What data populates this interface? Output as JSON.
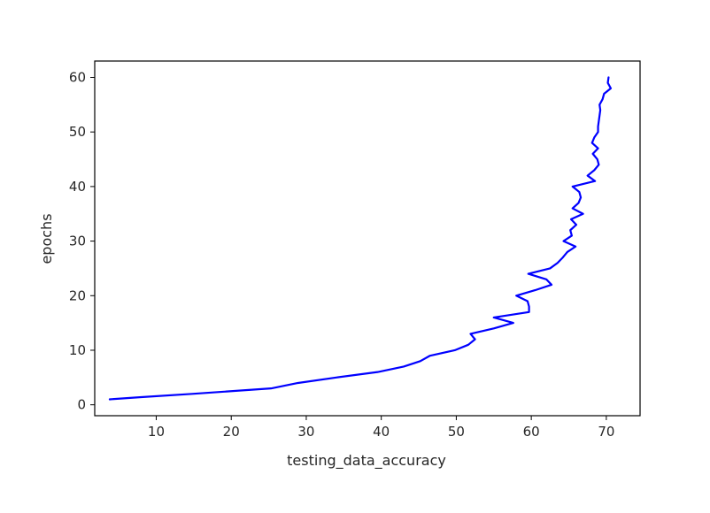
{
  "chart_data": {
    "type": "line",
    "xlabel": "testing_data_accuracy",
    "ylabel": "epochs",
    "xlim": [
      1.8,
      74.5
    ],
    "ylim": [
      -2,
      63
    ],
    "xticks": [
      10,
      20,
      30,
      40,
      50,
      60,
      70
    ],
    "yticks": [
      0,
      10,
      20,
      30,
      40,
      50,
      60
    ],
    "grid": false,
    "line_color": "#0000ff",
    "series": [
      {
        "points": [
          [
            3.8,
            1
          ],
          [
            8.0,
            1.4
          ],
          [
            14.8,
            2
          ],
          [
            25.3,
            3
          ],
          [
            28.9,
            4
          ],
          [
            34.0,
            5
          ],
          [
            39.5,
            6
          ],
          [
            43.0,
            7
          ],
          [
            45.2,
            8
          ],
          [
            46.5,
            9
          ],
          [
            49.8,
            10
          ],
          [
            51.6,
            11
          ],
          [
            52.5,
            12
          ],
          [
            51.9,
            13
          ],
          [
            55.0,
            14
          ],
          [
            57.6,
            15
          ],
          [
            55.0,
            16
          ],
          [
            59.7,
            17
          ],
          [
            59.7,
            18
          ],
          [
            59.5,
            19
          ],
          [
            58.0,
            20
          ],
          [
            60.5,
            21
          ],
          [
            62.7,
            22
          ],
          [
            62.0,
            23
          ],
          [
            59.6,
            24
          ],
          [
            62.5,
            25
          ],
          [
            63.5,
            26
          ],
          [
            64.2,
            27
          ],
          [
            64.8,
            28
          ],
          [
            65.9,
            29
          ],
          [
            64.3,
            30
          ],
          [
            65.4,
            31
          ],
          [
            65.2,
            32
          ],
          [
            66.0,
            33
          ],
          [
            65.3,
            34
          ],
          [
            66.9,
            35
          ],
          [
            65.5,
            36
          ],
          [
            66.3,
            37
          ],
          [
            66.6,
            38
          ],
          [
            66.4,
            39
          ],
          [
            65.5,
            40
          ],
          [
            68.5,
            41
          ],
          [
            67.5,
            42
          ],
          [
            68.4,
            43
          ],
          [
            69.0,
            44
          ],
          [
            68.8,
            45
          ],
          [
            68.2,
            46
          ],
          [
            68.9,
            47
          ],
          [
            68.1,
            48
          ],
          [
            68.4,
            49
          ],
          [
            68.9,
            50
          ],
          [
            68.9,
            51
          ],
          [
            69.0,
            52
          ],
          [
            69.1,
            53
          ],
          [
            69.2,
            54
          ],
          [
            69.1,
            55
          ],
          [
            69.5,
            56
          ],
          [
            69.7,
            57
          ],
          [
            70.6,
            58
          ],
          [
            70.2,
            59
          ],
          [
            70.3,
            60
          ]
        ]
      }
    ]
  }
}
